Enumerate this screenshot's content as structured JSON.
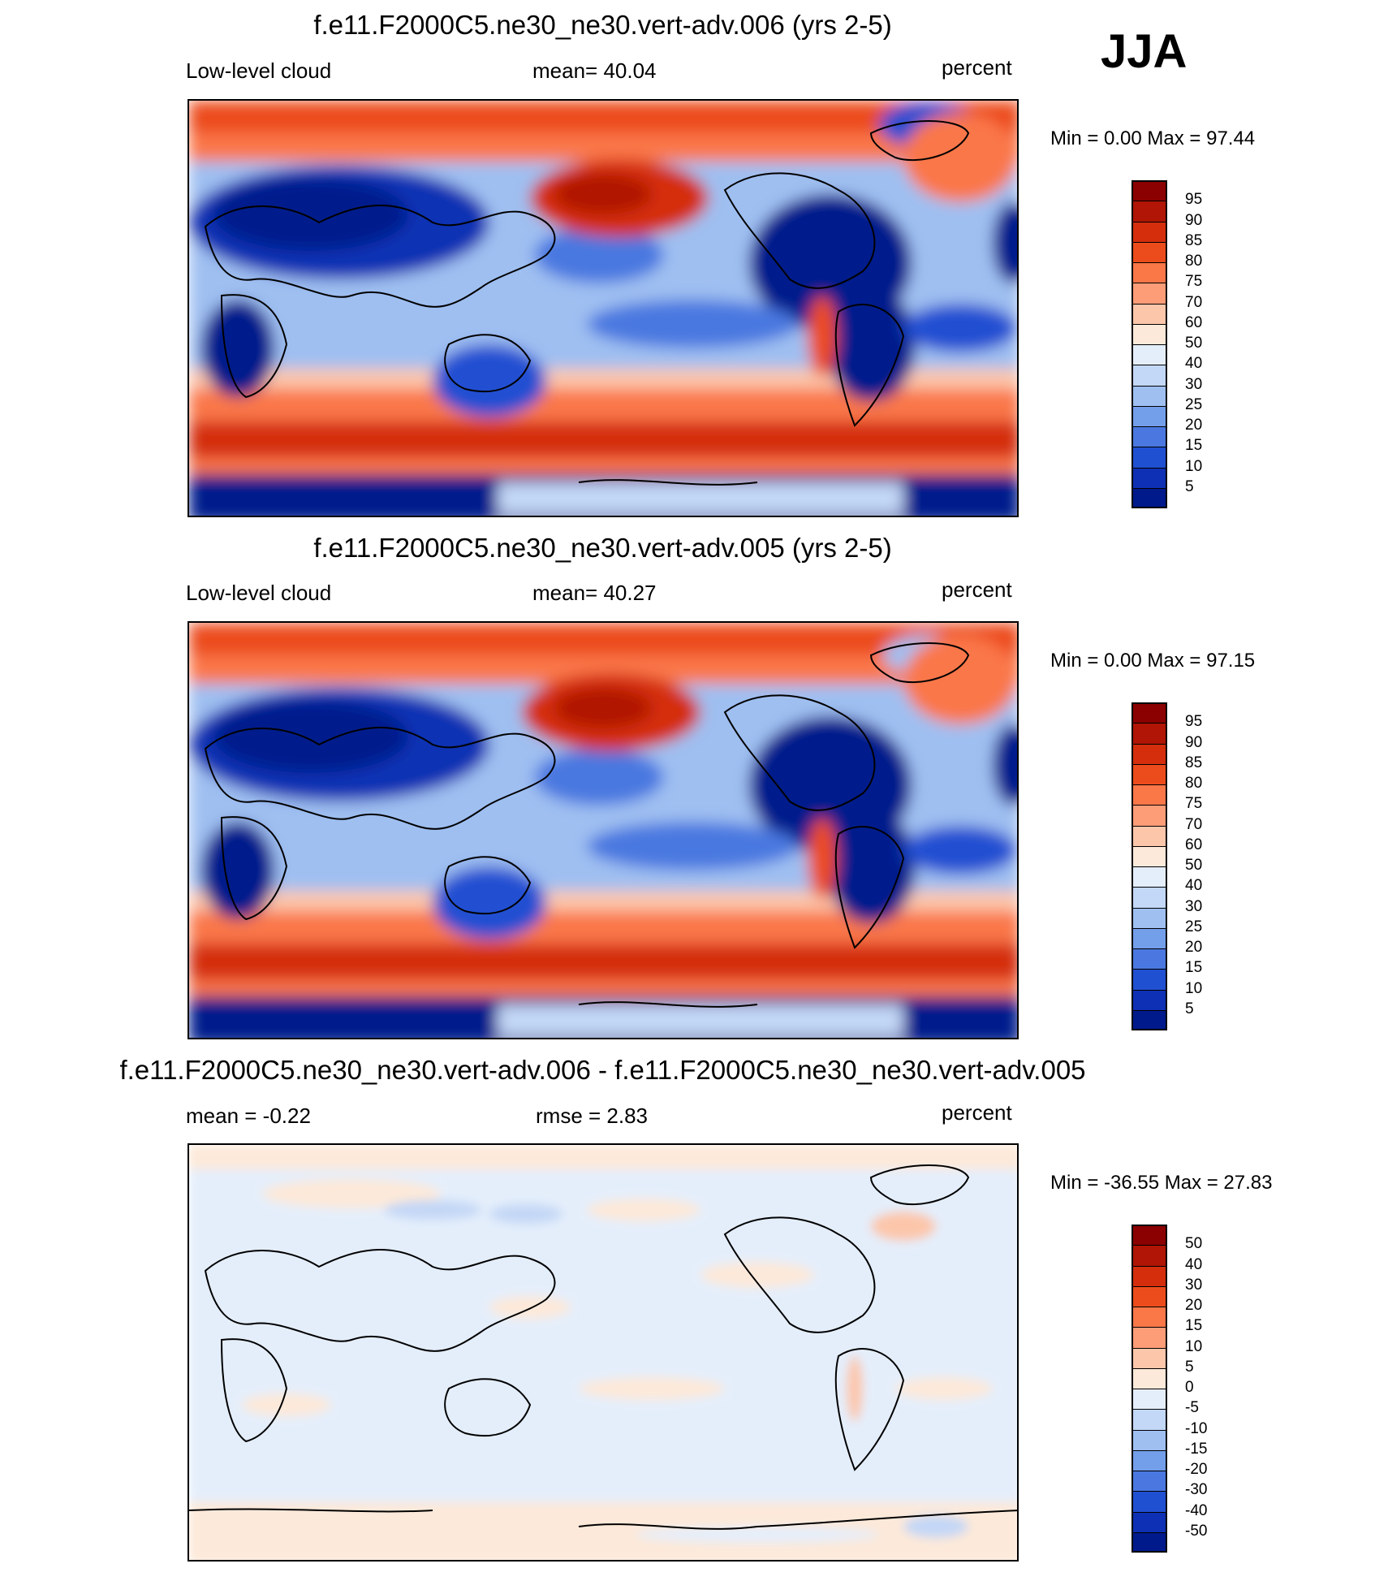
{
  "season": "JJA",
  "panels": [
    {
      "title": "f.e11.F2000C5.ne30_ne30.vert-adv.006 (yrs 2-5)",
      "left_label": "Low-level cloud",
      "center_label": "mean=  40.04",
      "units": "percent",
      "minmax": "Min =   0.00 Max =  97.44"
    },
    {
      "title": "f.e11.F2000C5.ne30_ne30.vert-adv.005 (yrs 2-5)",
      "left_label": "Low-level cloud",
      "center_label": "mean=  40.27",
      "units": "percent",
      "minmax": "Min =   0.00 Max =  97.15"
    },
    {
      "title": "f.e11.F2000C5.ne30_ne30.vert-adv.006 - f.e11.F2000C5.ne30_ne30.vert-adv.005",
      "left_label": "mean =  -0.22",
      "center_label": "rmse =   2.83",
      "units": "percent",
      "minmax": "Min = -36.55 Max =  27.83"
    }
  ],
  "chart_data": [
    {
      "type": "heatmap",
      "title": "f.e11.F2000C5.ne30_ne30.vert-adv.006 (yrs 2-5)",
      "variable": "Low-level cloud",
      "units": "percent",
      "mean": 40.04,
      "min": 0.0,
      "max": 97.44,
      "colorbar_levels": [
        95,
        90,
        85,
        80,
        75,
        70,
        60,
        50,
        40,
        30,
        25,
        20,
        15,
        10,
        5
      ],
      "colorbar_colors": [
        "#8b0000",
        "#b01505",
        "#d42e0d",
        "#ec4c1c",
        "#fa7748",
        "#fd9d78",
        "#fcc6aa",
        "#fde9d9",
        "#e4eefb",
        "#c3d7f6",
        "#9fbff1",
        "#739ee9",
        "#4a78e0",
        "#2050d2",
        "#0e30b4",
        "#001a8c"
      ]
    },
    {
      "type": "heatmap",
      "title": "f.e11.F2000C5.ne30_ne30.vert-adv.005 (yrs 2-5)",
      "variable": "Low-level cloud",
      "units": "percent",
      "mean": 40.27,
      "min": 0.0,
      "max": 97.15,
      "colorbar_levels": [
        95,
        90,
        85,
        80,
        75,
        70,
        60,
        50,
        40,
        30,
        25,
        20,
        15,
        10,
        5
      ],
      "colorbar_colors": [
        "#8b0000",
        "#b01505",
        "#d42e0d",
        "#ec4c1c",
        "#fa7748",
        "#fd9d78",
        "#fcc6aa",
        "#fde9d9",
        "#e4eefb",
        "#c3d7f6",
        "#9fbff1",
        "#739ee9",
        "#4a78e0",
        "#2050d2",
        "#0e30b4",
        "#001a8c"
      ]
    },
    {
      "type": "heatmap",
      "title": "f.e11.F2000C5.ne30_ne30.vert-adv.006 - f.e11.F2000C5.ne30_ne30.vert-adv.005",
      "units": "percent",
      "mean": -0.22,
      "rmse": 2.83,
      "min": -36.55,
      "max": 27.83,
      "colorbar_levels": [
        50,
        40,
        30,
        20,
        15,
        10,
        5,
        0,
        -5,
        -10,
        -15,
        -20,
        -30,
        -40,
        -50
      ],
      "colorbar_colors": [
        "#8b0000",
        "#b01505",
        "#d42e0d",
        "#ec4c1c",
        "#fa7748",
        "#fd9d78",
        "#fcc6aa",
        "#fde9d9",
        "#e4eefb",
        "#c3d7f6",
        "#9fbff1",
        "#739ee9",
        "#4a78e0",
        "#2050d2",
        "#0e30b4",
        "#001a8c"
      ]
    }
  ]
}
